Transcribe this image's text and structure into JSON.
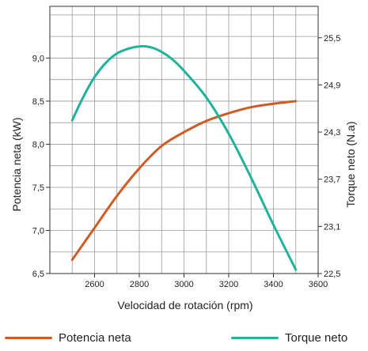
{
  "chart_data": {
    "type": "line",
    "title": "",
    "xlabel": "Velocidad de rotación (rpm)",
    "ylabel_left": "Potencia neta (kW)",
    "ylabel_right": "Torque neto (N.a)",
    "x_range": [
      2400,
      3600
    ],
    "x_ticks": [
      "2600",
      "2800",
      "3000",
      "3200",
      "3400",
      "3600"
    ],
    "y_left_range": [
      6.5,
      9.6
    ],
    "y_left_ticks": [
      "6,5",
      "7,0",
      "7,5",
      "8,0",
      "8,5",
      "9,0"
    ],
    "y_right_range": [
      22.5,
      25.9
    ],
    "y_right_ticks": [
      "22,5",
      "23,1",
      "23,7",
      "24,3",
      "24,9",
      "25,5"
    ],
    "grid": true,
    "legend_position": "bottom",
    "series": [
      {
        "name": "Potencia neta",
        "axis": "left",
        "color": "#cf5b25",
        "points": [
          [
            2500,
            6.66
          ],
          [
            2600,
            7.03
          ],
          [
            2700,
            7.4
          ],
          [
            2800,
            7.72
          ],
          [
            2900,
            7.98
          ],
          [
            3000,
            8.14
          ],
          [
            3100,
            8.27
          ],
          [
            3200,
            8.36
          ],
          [
            3300,
            8.43
          ],
          [
            3400,
            8.47
          ],
          [
            3500,
            8.5
          ]
        ]
      },
      {
        "name": "Torque neto",
        "axis": "right",
        "color": "#1fb39a",
        "points": [
          [
            2500,
            24.45
          ],
          [
            2550,
            24.75
          ],
          [
            2600,
            25.0
          ],
          [
            2650,
            25.18
          ],
          [
            2700,
            25.3
          ],
          [
            2750,
            25.36
          ],
          [
            2800,
            25.39
          ],
          [
            2850,
            25.38
          ],
          [
            2900,
            25.32
          ],
          [
            2950,
            25.22
          ],
          [
            3000,
            25.08
          ],
          [
            3100,
            24.74
          ],
          [
            3200,
            24.28
          ],
          [
            3300,
            23.72
          ],
          [
            3400,
            23.12
          ],
          [
            3500,
            22.55
          ]
        ]
      }
    ]
  }
}
